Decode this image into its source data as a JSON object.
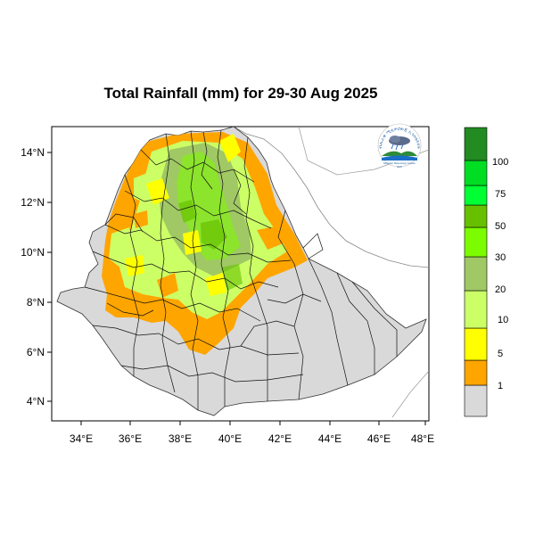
{
  "title": "Total Rainfall (mm) for 29-30 Aug 2025",
  "x_ticks": [
    "34°E",
    "36°E",
    "38°E",
    "40°E",
    "42°E",
    "44°E",
    "46°E",
    "48°E"
  ],
  "y_ticks": [
    "14°N",
    "12°N",
    "10°N",
    "8°N",
    "6°N",
    "4°N"
  ],
  "legend": {
    "labels": [
      "1",
      "5",
      "10",
      "20",
      "30",
      "50",
      "75",
      "100"
    ],
    "colors": [
      "#d9d9d9",
      "#ffa500",
      "#ffff00",
      "#ccff66",
      "#a0c864",
      "#7cfc00",
      "#66c000",
      "#00ff33",
      "#00dd22",
      "#228b22"
    ]
  },
  "logo": {
    "arc_text": "ብሔራዊ ሚቲዎሮሎጂ ኢንስቲትዩት",
    "caption": "Ethiopian Meteorology Institute",
    "year": "EMI"
  },
  "colors": {
    "land": "#d9d9d9",
    "orange": "#ffa500",
    "yellow": "#ffff00",
    "lightgreen": "#ccff66",
    "olive": "#a0c864",
    "green": "#7cfc00"
  }
}
